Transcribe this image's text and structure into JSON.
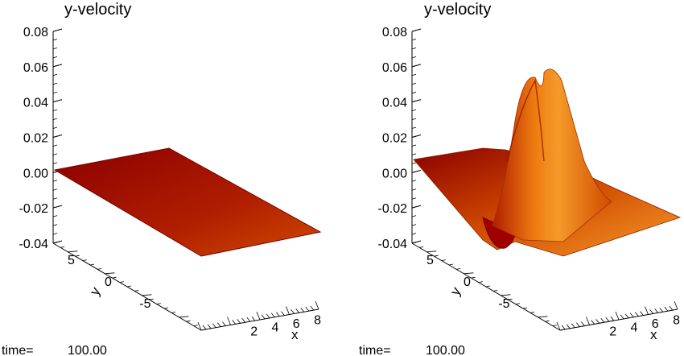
{
  "chart_data": [
    {
      "type": "surface",
      "title": "y-velocity",
      "zlim": [
        -0.04,
        0.08
      ],
      "z_ticks": [
        "0.08",
        "0.06",
        "0.04",
        "0.02",
        "0.00",
        "-0.02",
        "-0.04"
      ],
      "y_ticks": [
        "5",
        "0",
        "-5"
      ],
      "x_ticks": [
        "2",
        "4",
        "6",
        "8"
      ],
      "xlabel": "x",
      "ylabel": "y",
      "surface": {
        "description_values": {
          "plane_value": 0.0,
          "tilt": 0.0
        },
        "colors": [
          "#8b0000",
          "#b01e00",
          "#d04a00",
          "#ee7a10",
          "#f59a2a"
        ]
      },
      "footer": {
        "label": "time=",
        "value": "100.00"
      }
    },
    {
      "type": "surface",
      "title": "y-velocity",
      "zlim": [
        -0.04,
        0.08
      ],
      "z_ticks": [
        "0.08",
        "0.06",
        "0.04",
        "0.02",
        "0.00",
        "-0.02",
        "-0.04"
      ],
      "y_ticks": [
        "5",
        "0",
        "-5"
      ],
      "x_ticks": [
        "2",
        "4",
        "6",
        "8"
      ],
      "xlabel": "x",
      "ylabel": "y",
      "surface": {
        "peak_value": 0.07,
        "trough_value": -0.04,
        "colors": [
          "#8b0000",
          "#b01e00",
          "#d04a00",
          "#ee7a10",
          "#f59a2a"
        ]
      },
      "footer": {
        "label": "time=",
        "value": "100.00"
      }
    }
  ]
}
